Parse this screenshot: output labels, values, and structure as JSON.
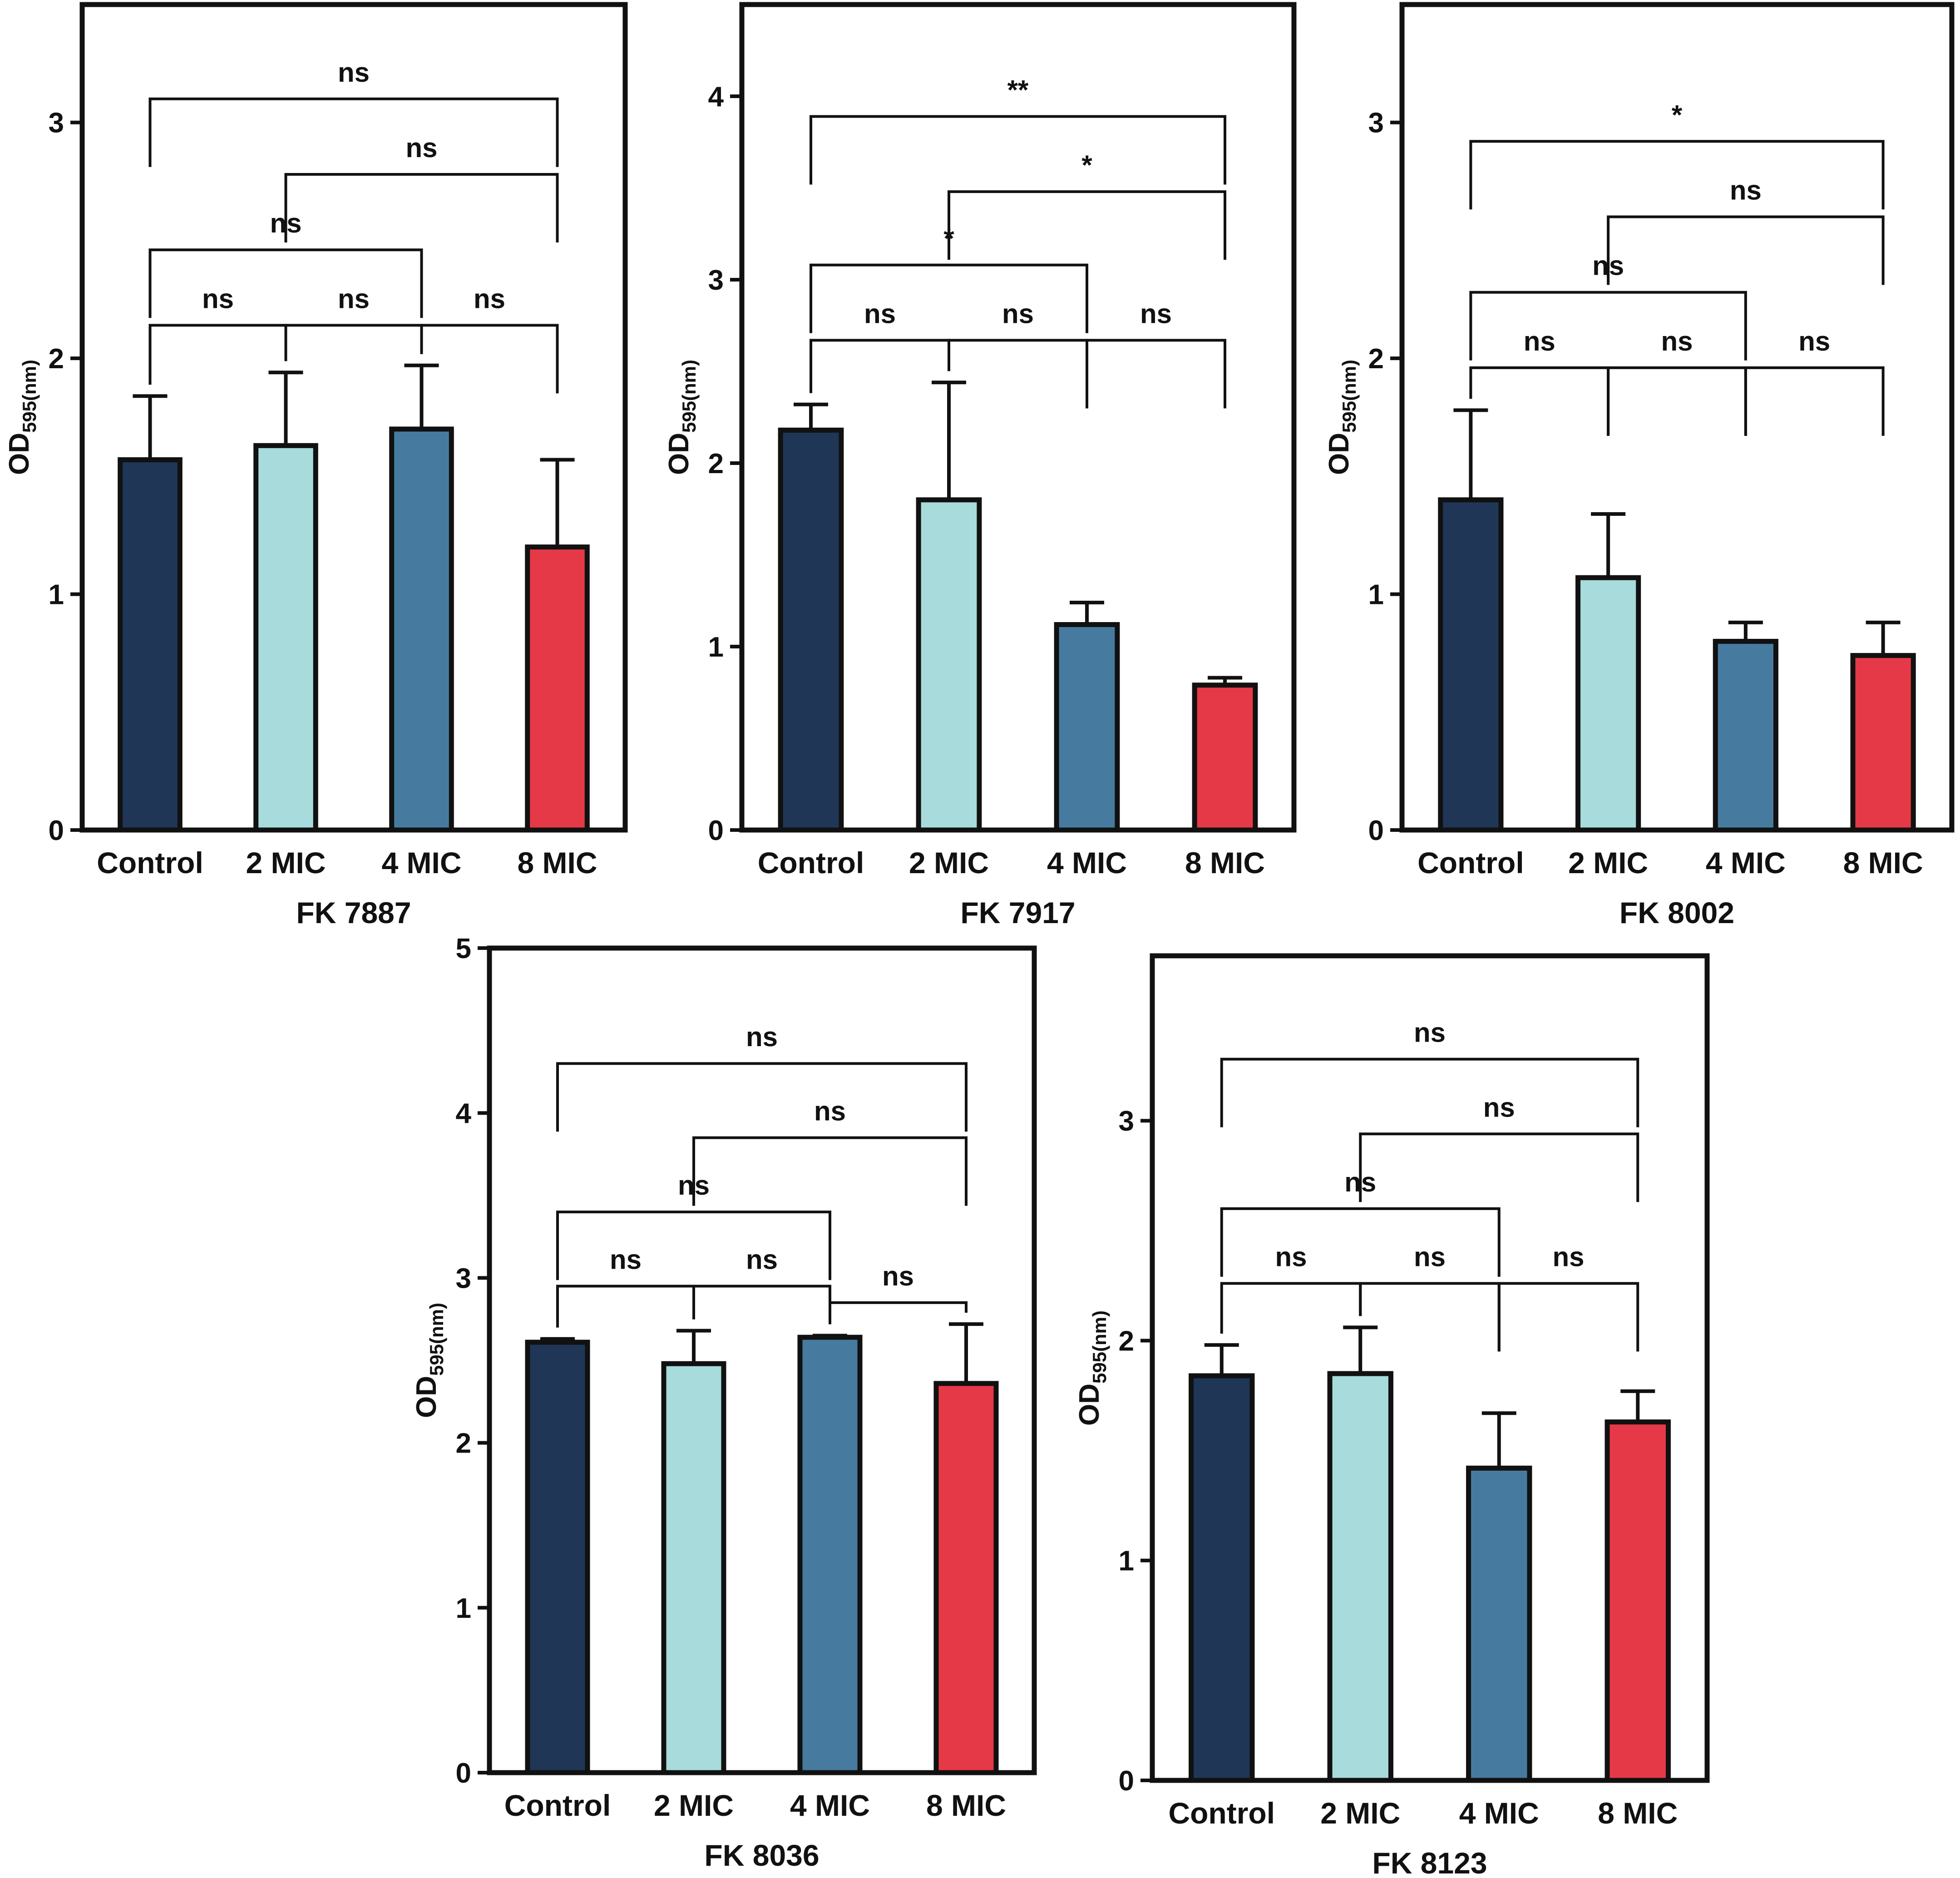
{
  "colors": {
    "Control": "#1F3657",
    "2 MIC": "#A8DBDB",
    "4 MIC": "#467B9F",
    "8 MIC": "#E63947",
    "axis": "#111111"
  },
  "y_axis_label": {
    "main": "OD",
    "sub": "595(nm)"
  },
  "chart_data": [
    {
      "type": "bar",
      "title": "FK 7887",
      "categories": [
        "Control",
        "2 MIC",
        "4 MIC",
        "8 MIC"
      ],
      "values": [
        1.57,
        1.63,
        1.7,
        1.2
      ],
      "errors": [
        0.27,
        0.31,
        0.27,
        0.37
      ],
      "ylim": [
        0,
        3.5
      ],
      "yticks": [
        0,
        1,
        2,
        3
      ],
      "ylabel": "OD595(nm)",
      "comparisons": [
        {
          "a": 0,
          "b": 1,
          "y": 2.14,
          "label": "ns"
        },
        {
          "a": 1,
          "b": 2,
          "y": 2.14,
          "label": "ns"
        },
        {
          "a": 2,
          "b": 3,
          "y": 2.14,
          "label": "ns"
        },
        {
          "a": 0,
          "b": 2,
          "y": 2.46,
          "label": "ns"
        },
        {
          "a": 1,
          "b": 3,
          "y": 2.78,
          "label": "ns"
        },
        {
          "a": 0,
          "b": 3,
          "y": 3.1,
          "label": "ns"
        }
      ]
    },
    {
      "type": "bar",
      "title": "FK 7917",
      "categories": [
        "Control",
        "2 MIC",
        "4 MIC",
        "8 MIC"
      ],
      "values": [
        2.18,
        1.8,
        1.12,
        0.79
      ],
      "errors": [
        0.14,
        0.64,
        0.12,
        0.04
      ],
      "ylim": [
        0,
        4.5
      ],
      "yticks": [
        0,
        1,
        2,
        3,
        4
      ],
      "ylabel": "OD595(nm)",
      "comparisons": [
        {
          "a": 0,
          "b": 1,
          "y": 2.67,
          "label": "ns"
        },
        {
          "a": 1,
          "b": 2,
          "y": 2.67,
          "label": "ns"
        },
        {
          "a": 2,
          "b": 3,
          "y": 2.67,
          "label": "ns"
        },
        {
          "a": 0,
          "b": 2,
          "y": 3.08,
          "label": "*"
        },
        {
          "a": 1,
          "b": 3,
          "y": 3.48,
          "label": "*"
        },
        {
          "a": 0,
          "b": 3,
          "y": 3.89,
          "label": "**"
        }
      ]
    },
    {
      "type": "bar",
      "title": "FK 8002",
      "categories": [
        "Control",
        "2 MIC",
        "4 MIC",
        "8 MIC"
      ],
      "values": [
        1.4,
        1.07,
        0.8,
        0.74
      ],
      "errors": [
        0.38,
        0.27,
        0.08,
        0.14
      ],
      "ylim": [
        0,
        3.5
      ],
      "yticks": [
        0,
        1,
        2,
        3
      ],
      "ylabel": "OD595(nm)",
      "comparisons": [
        {
          "a": 0,
          "b": 1,
          "y": 1.96,
          "label": "ns"
        },
        {
          "a": 1,
          "b": 2,
          "y": 1.96,
          "label": "ns"
        },
        {
          "a": 2,
          "b": 3,
          "y": 1.96,
          "label": "ns"
        },
        {
          "a": 0,
          "b": 2,
          "y": 2.28,
          "label": "ns"
        },
        {
          "a": 1,
          "b": 3,
          "y": 2.6,
          "label": "ns"
        },
        {
          "a": 0,
          "b": 3,
          "y": 2.92,
          "label": "*"
        }
      ]
    },
    {
      "type": "bar",
      "title": "FK 8036",
      "categories": [
        "Control",
        "2 MIC",
        "4 MIC",
        "8 MIC"
      ],
      "values": [
        2.61,
        2.48,
        2.64,
        2.36
      ],
      "errors": [
        0.02,
        0.2,
        0.01,
        0.36
      ],
      "ylim": [
        0,
        5
      ],
      "yticks": [
        0,
        1,
        2,
        3,
        4,
        5
      ],
      "ylabel": "OD595(nm)",
      "comparisons": [
        {
          "a": 0,
          "b": 1,
          "y": 2.95,
          "label": "ns"
        },
        {
          "a": 1,
          "b": 2,
          "y": 2.95,
          "label": "ns"
        },
        {
          "a": 2,
          "b": 3,
          "y": 2.85,
          "label": "ns"
        },
        {
          "a": 0,
          "b": 2,
          "y": 3.4,
          "label": "ns"
        },
        {
          "a": 1,
          "b": 3,
          "y": 3.85,
          "label": "ns"
        },
        {
          "a": 0,
          "b": 3,
          "y": 4.3,
          "label": "ns"
        }
      ]
    },
    {
      "type": "bar",
      "title": "FK 8123",
      "categories": [
        "Control",
        "2 MIC",
        "4 MIC",
        "8 MIC"
      ],
      "values": [
        1.84,
        1.85,
        1.42,
        1.63
      ],
      "errors": [
        0.14,
        0.21,
        0.25,
        0.14
      ],
      "ylim": [
        0,
        3.75
      ],
      "yticks": [
        0,
        1,
        2,
        3
      ],
      "ylabel": "OD595(nm)",
      "comparisons": [
        {
          "a": 0,
          "b": 1,
          "y": 2.26,
          "label": "ns"
        },
        {
          "a": 1,
          "b": 2,
          "y": 2.26,
          "label": "ns"
        },
        {
          "a": 2,
          "b": 3,
          "y": 2.26,
          "label": "ns"
        },
        {
          "a": 0,
          "b": 2,
          "y": 2.6,
          "label": "ns"
        },
        {
          "a": 1,
          "b": 3,
          "y": 2.94,
          "label": "ns"
        },
        {
          "a": 0,
          "b": 3,
          "y": 3.28,
          "label": "ns"
        }
      ]
    }
  ]
}
